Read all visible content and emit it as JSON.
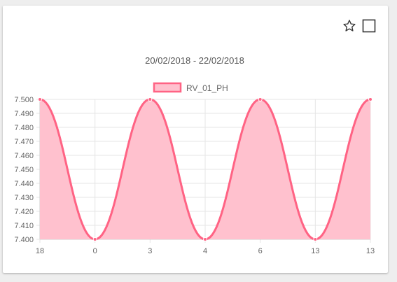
{
  "toolbar": {
    "favorite_icon": "star-outline-icon",
    "select_icon": "checkbox-empty-icon"
  },
  "chart_data": {
    "type": "area",
    "title": "20/02/2018 - 22/02/2018",
    "xlabel": "",
    "ylabel": "",
    "categories": [
      "18",
      "0",
      "3",
      "4",
      "6",
      "13",
      "13"
    ],
    "series": [
      {
        "name": "RV_01_PH",
        "values": [
          7.5,
          7.4,
          7.5,
          7.4,
          7.5,
          7.4,
          7.5
        ],
        "color": "#ff6384",
        "fill": "#ffc1ce"
      }
    ],
    "ylim": [
      7.4,
      7.5
    ],
    "yticks": [
      "7.500",
      "7.490",
      "7.480",
      "7.470",
      "7.460",
      "7.450",
      "7.440",
      "7.430",
      "7.420",
      "7.410",
      "7.400"
    ],
    "grid": true,
    "legend": "top"
  }
}
